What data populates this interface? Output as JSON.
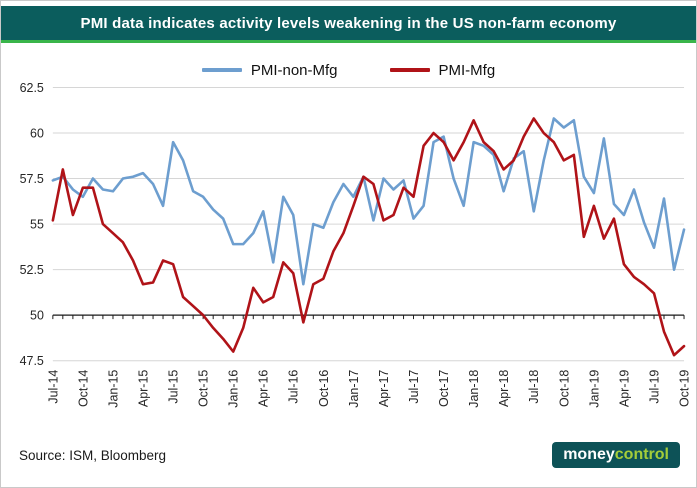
{
  "header": {
    "title": "PMI data indicates activity levels weakening in the US non-farm economy"
  },
  "footer": {
    "source": "Source: ISM, Bloomberg",
    "logo": {
      "part1": "money",
      "part2": "control"
    }
  },
  "colors": {
    "header_bg": "#0b5d5d",
    "accent_green": "#39b54a",
    "gridline": "#d6d6d6",
    "axis": "#1a1a1a",
    "tick_text": "#262626",
    "logo_bg": "#0d5257",
    "logo_green": "#a4cd39",
    "non_mfg_blue": "#6d9ecf",
    "mfg_red": "#b01318"
  },
  "chart_data": {
    "type": "line",
    "title": "PMI data indicates activity levels weakening in the US non-farm economy",
    "xlabel": "",
    "ylabel": "",
    "ylim": [
      47.5,
      62.5
    ],
    "yticks": [
      47.5,
      50,
      52.5,
      55,
      57.5,
      60,
      62.5
    ],
    "threshold": 50,
    "grid": true,
    "legend_position": "top",
    "tick_every": 3,
    "months": [
      "Jul-14",
      "Aug-14",
      "Sep-14",
      "Oct-14",
      "Nov-14",
      "Dec-14",
      "Jan-15",
      "Feb-15",
      "Mar-15",
      "Apr-15",
      "May-15",
      "Jun-15",
      "Jul-15",
      "Aug-15",
      "Sep-15",
      "Oct-15",
      "Nov-15",
      "Dec-15",
      "Jan-16",
      "Feb-16",
      "Mar-16",
      "Apr-16",
      "May-16",
      "Jun-16",
      "Jul-16",
      "Aug-16",
      "Sep-16",
      "Oct-16",
      "Nov-16",
      "Dec-16",
      "Jan-17",
      "Feb-17",
      "Mar-17",
      "Apr-17",
      "May-17",
      "Jun-17",
      "Jul-17",
      "Aug-17",
      "Sep-17",
      "Oct-17",
      "Nov-17",
      "Dec-17",
      "Jan-18",
      "Feb-18",
      "Mar-18",
      "Apr-18",
      "May-18",
      "Jun-18",
      "Jul-18",
      "Aug-18",
      "Sep-18",
      "Oct-18",
      "Nov-18",
      "Dec-18",
      "Jan-19",
      "Feb-19",
      "Mar-19",
      "Apr-19",
      "May-19",
      "Jun-19",
      "Jul-19",
      "Aug-19",
      "Sep-19",
      "Oct-19"
    ],
    "x_tick_labels": [
      "Jul-14",
      "Oct-14",
      "Jan-15",
      "Apr-15",
      "Jul-15",
      "Oct-15",
      "Jan-16",
      "Apr-16",
      "Jul-16",
      "Oct-16",
      "Jan-17",
      "Apr-17",
      "Jul-17",
      "Oct-17",
      "Jan-18",
      "Apr-18",
      "Jul-18",
      "Oct-18",
      "Jan-19",
      "Apr-19",
      "Jul-19",
      "Oct-19"
    ],
    "series": [
      {
        "name": "PMI-non-Mfg",
        "color": "#6d9ecf",
        "values": [
          57.4,
          57.6,
          56.9,
          56.5,
          57.5,
          56.9,
          56.8,
          57.5,
          57.6,
          57.8,
          57.2,
          56.0,
          59.5,
          58.5,
          56.8,
          56.5,
          55.8,
          55.3,
          53.9,
          53.9,
          54.5,
          55.7,
          52.9,
          56.5,
          55.5,
          51.7,
          55.0,
          54.8,
          56.2,
          57.2,
          56.5,
          57.6,
          55.2,
          57.5,
          56.9,
          57.4,
          55.3,
          56.0,
          59.5,
          59.8,
          57.5,
          56.0,
          59.5,
          59.3,
          58.8,
          56.8,
          58.6,
          59.0,
          55.7,
          58.5,
          60.8,
          60.3,
          60.7,
          57.6,
          56.7,
          59.7,
          56.1,
          55.5,
          56.9,
          55.1,
          53.7,
          56.4,
          52.5,
          54.7
        ]
      },
      {
        "name": "PMI-Mfg",
        "color": "#b01318",
        "values": [
          55.2,
          58.0,
          55.5,
          57.0,
          57.0,
          55.0,
          54.5,
          54.0,
          53.0,
          51.7,
          51.8,
          53.0,
          52.8,
          51.0,
          50.5,
          50.0,
          49.3,
          48.7,
          48.0,
          49.3,
          51.5,
          50.7,
          51.0,
          52.9,
          52.3,
          49.6,
          51.7,
          52.0,
          53.5,
          54.5,
          56.0,
          57.6,
          57.2,
          55.2,
          55.5,
          57.0,
          56.5,
          59.3,
          60.0,
          59.5,
          58.5,
          59.5,
          60.7,
          59.5,
          59.0,
          58.0,
          58.5,
          59.8,
          60.8,
          60.0,
          59.5,
          58.5,
          58.8,
          54.3,
          56.0,
          54.2,
          55.3,
          52.8,
          52.1,
          51.7,
          51.2,
          49.1,
          47.8,
          48.3
        ]
      }
    ]
  }
}
